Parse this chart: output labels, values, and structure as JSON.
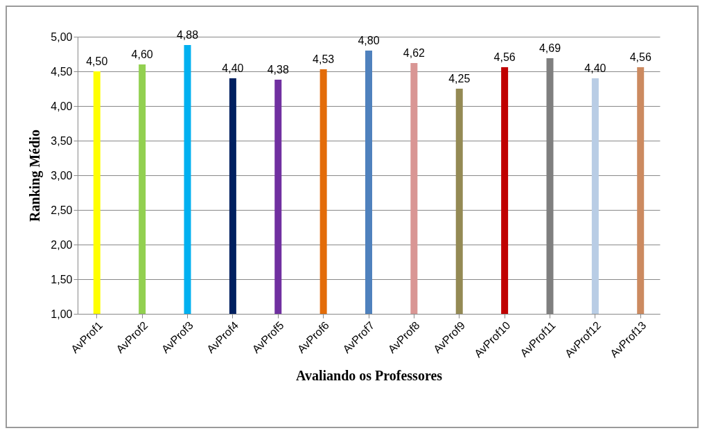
{
  "chart_data": {
    "type": "bar",
    "xlabel": "Avaliando os Professores",
    "ylabel": "Ranking Médio",
    "categories": [
      "AvProf1",
      "AvProf2",
      "AvProf3",
      "AvProf4",
      "AvProf5",
      "AvProf6",
      "AvProf7",
      "AvProf8",
      "AvProf9",
      "AvProf10",
      "AvProf11",
      "AvProf12",
      "AvProf13"
    ],
    "values": [
      4.5,
      4.6,
      4.88,
      4.4,
      4.38,
      4.53,
      4.8,
      4.62,
      4.25,
      4.56,
      4.69,
      4.4,
      4.56
    ],
    "value_labels": [
      "4,50",
      "4,60",
      "4,88",
      "4,40",
      "4,38",
      "4,53",
      "4,80",
      "4,62",
      "4,25",
      "4,56",
      "4,69",
      "4,40",
      "4,56"
    ],
    "colors": [
      "#ffff00",
      "#92d050",
      "#00b0f0",
      "#002060",
      "#7030a0",
      "#e36c09",
      "#4f81bd",
      "#d99694",
      "#948a54",
      "#c00000",
      "#7f7f7f",
      "#b9cde5",
      "#cc8a60"
    ],
    "ylim": [
      1,
      5
    ],
    "yticks": [
      {
        "value": 1,
        "label": "1,00"
      },
      {
        "value": 1.5,
        "label": "1,50"
      },
      {
        "value": 2,
        "label": "2,00"
      },
      {
        "value": 2.5,
        "label": "2,50"
      },
      {
        "value": 3,
        "label": "3,00"
      },
      {
        "value": 3.5,
        "label": "3,50"
      },
      {
        "value": 4,
        "label": "4,00"
      },
      {
        "value": 4.5,
        "label": "4,50"
      },
      {
        "value": 5,
        "label": "5,00"
      }
    ],
    "grid": "y"
  }
}
